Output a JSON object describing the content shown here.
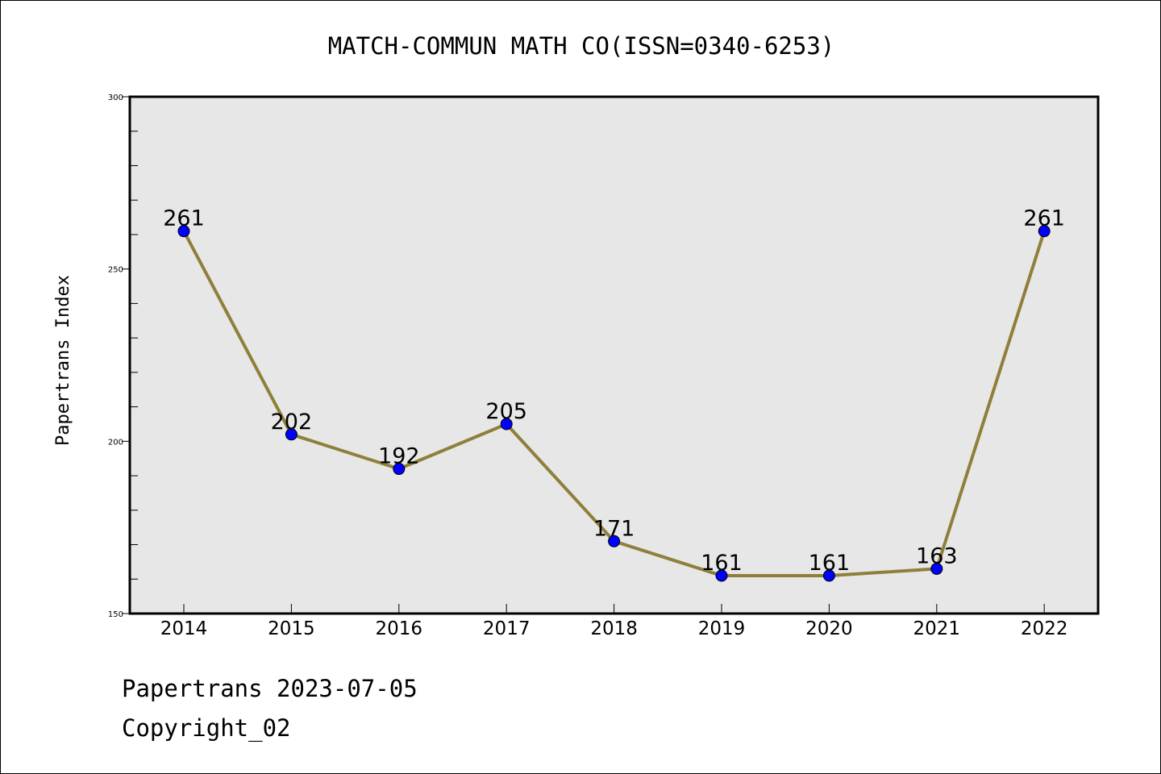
{
  "footer": {
    "line1": "Papertrans 2023-07-05",
    "line2": "Copyright_02"
  },
  "colors": {
    "plot_background": "#e7e7e7",
    "line": "#8e7f3a",
    "marker": "#0000ff",
    "axis": "#000000"
  },
  "chart_data": {
    "type": "line",
    "title": "MATCH-COMMUN MATH CO(ISSN=0340-6253)",
    "xlabel": "",
    "ylabel": "Papertrans Index",
    "categories": [
      "2014",
      "2015",
      "2016",
      "2017",
      "2018",
      "2019",
      "2020",
      "2021",
      "2022"
    ],
    "series": [
      {
        "values": [
          261,
          202,
          192,
          205,
          171,
          161,
          161,
          163,
          261
        ]
      }
    ],
    "ylim": [
      150,
      300
    ],
    "yticks": [
      150,
      200,
      250,
      300
    ],
    "grid": false,
    "legend": "none",
    "data_labels": true
  }
}
